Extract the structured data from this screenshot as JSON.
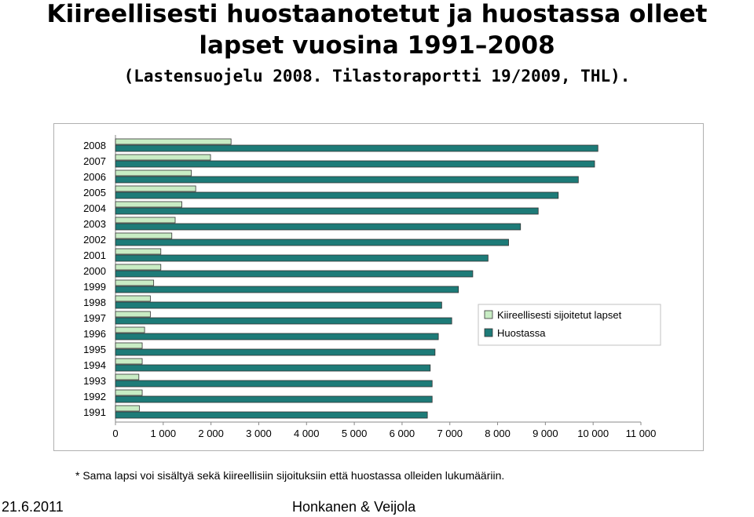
{
  "title": {
    "line1": "Kiireellisesti huostaanotetut ja huostassa olleet",
    "line2": "lapset vuosina 1991–2008",
    "line3": "(Lastensuojelu 2008. Tilastoraportti 19/2009, THL)."
  },
  "footnote": "* Sama lapsi voi sisältyä sekä kiireellisiin sijoituksiin että huostassa olleiden lukumääriin.",
  "footer": {
    "date": "21.6.2011",
    "authors": "Honkanen & Veijola"
  },
  "colors": {
    "urgent": "#c8ecc4",
    "custody": "#1d7b78",
    "border": "#333333",
    "axis": "#888888"
  },
  "chart_data": {
    "type": "bar",
    "orientation": "horizontal",
    "categories": [
      "2008",
      "2007",
      "2006",
      "2005",
      "2004",
      "2003",
      "2002",
      "2001",
      "2000",
      "1999",
      "1998",
      "1997",
      "1996",
      "1995",
      "1994",
      "1993",
      "1992",
      "1991"
    ],
    "series": [
      {
        "name": "Kiireellisesti sijoitetut lapset",
        "values": [
          2420,
          1990,
          1590,
          1680,
          1390,
          1250,
          1180,
          950,
          950,
          800,
          730,
          730,
          610,
          560,
          560,
          490,
          560,
          500
        ]
      },
      {
        "name": "Huostassa",
        "values": [
          10100,
          10030,
          9690,
          9270,
          8850,
          8480,
          8230,
          7800,
          7480,
          7180,
          6830,
          7040,
          6760,
          6690,
          6590,
          6630,
          6630,
          6530
        ]
      }
    ],
    "xlim": [
      0,
      11000
    ],
    "x_ticks": [
      "0",
      "1 000",
      "2 000",
      "3 000",
      "4 000",
      "5 000",
      "6 000",
      "7 000",
      "8 000",
      "9 000",
      "10 000",
      "11 000"
    ],
    "x_tick_values": [
      0,
      1000,
      2000,
      3000,
      4000,
      5000,
      6000,
      7000,
      8000,
      9000,
      10000,
      11000
    ],
    "legend_position": "right",
    "grid": false
  }
}
